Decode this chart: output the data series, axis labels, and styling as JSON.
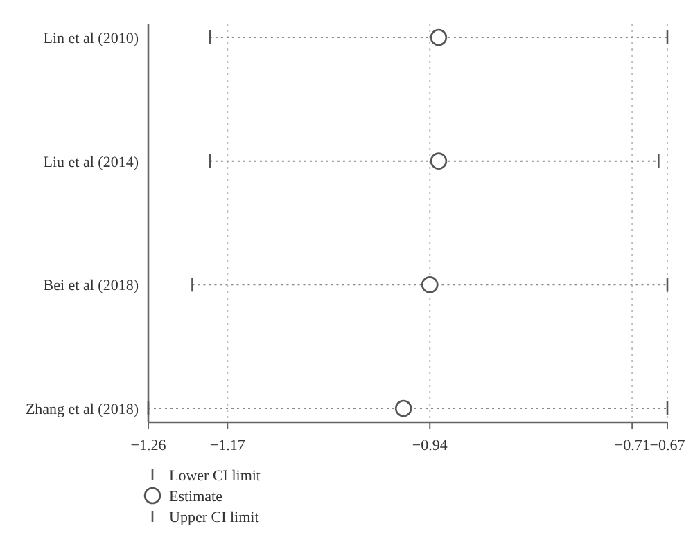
{
  "chart_data": {
    "type": "scatter",
    "orientation": "horizontal",
    "categories": [
      "Lin et al (2010)",
      "Liu et al (2014)",
      "Bei et al (2018)",
      "Zhang et al (2018)"
    ],
    "series": [
      {
        "name": "Estimate",
        "color": "#555555",
        "marker": "circle",
        "values": [
          -0.93,
          -0.93,
          -0.94,
          -0.97
        ],
        "errors": [
          [
            -1.19,
            -0.67
          ],
          [
            -1.19,
            -0.68
          ],
          [
            -1.21,
            -0.67
          ],
          [
            -1.26,
            -0.67
          ]
        ]
      }
    ],
    "annotations": [
      "Lower CI limit",
      "Upper CI limit"
    ],
    "xlim": [
      -1.26,
      -0.67
    ],
    "xticks": [
      -1.26,
      -1.17,
      -0.94,
      -0.71,
      -0.67
    ],
    "grid": "x",
    "legend": "bottom"
  }
}
